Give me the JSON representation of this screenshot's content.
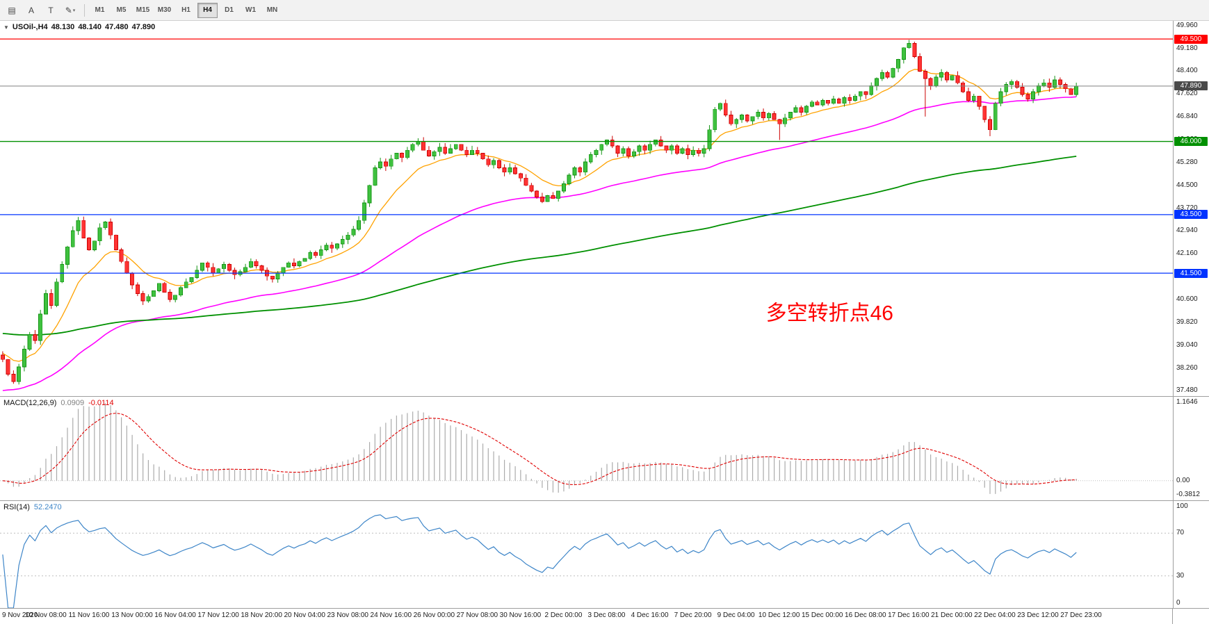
{
  "toolbar": {
    "tools": [
      {
        "name": "chart-grid",
        "glyph": "▤"
      },
      {
        "name": "text-label",
        "glyph": "A"
      },
      {
        "name": "text-box",
        "glyph": "T"
      },
      {
        "name": "draw-tools",
        "glyph": "✎",
        "dropdown": "▾"
      }
    ],
    "timeframes": [
      "M1",
      "M5",
      "M15",
      "M30",
      "H1",
      "H4",
      "D1",
      "W1",
      "MN"
    ],
    "active_timeframe": "H4"
  },
  "chart": {
    "collapse_glyph": "▼",
    "symbol_timeframe": "USOil-,H4",
    "open": "48.130",
    "high": "48.140",
    "low": "47.480",
    "close": "47.890"
  },
  "chart_data": {
    "type": "candlestick",
    "title": "USOil-,H4 48.130 48.140 47.480 47.890",
    "symbol": "USOil-",
    "timeframe": "H4",
    "current_bar": {
      "open": 48.13,
      "high": 48.14,
      "low": 47.48,
      "close": 47.89
    },
    "y_axis": {
      "min": 37.3,
      "max": 50.12,
      "ticks": [
        "49.960",
        "49.180",
        "48.400",
        "47.620",
        "46.840",
        "46.060",
        "45.280",
        "44.500",
        "43.720",
        "42.940",
        "42.160",
        "41.380",
        "40.600",
        "39.820",
        "39.040",
        "38.260",
        "37.480"
      ]
    },
    "x_labels": [
      "9 Nov 2020",
      "10 Nov 08:00",
      "11 Nov 16:00",
      "13 Nov 00:00",
      "16 Nov 04:00",
      "17 Nov 12:00",
      "18 Nov 20:00",
      "20 Nov 04:00",
      "23 Nov 08:00",
      "24 Nov 16:00",
      "26 Nov 00:00",
      "27 Nov 08:00",
      "30 Nov 16:00",
      "2 Dec 00:00",
      "3 Dec 08:00",
      "4 Dec 16:00",
      "7 Dec 20:00",
      "9 Dec 04:00",
      "10 Dec 12:00",
      "15 Dec 00:00",
      "16 Dec 08:00",
      "17 Dec 16:00",
      "21 Dec 00:00",
      "22 Dec 04:00",
      "23 Dec 12:00",
      "27 Dec 23:00"
    ],
    "first_open": 38.7,
    "closes": [
      38.55,
      38.05,
      37.8,
      38.3,
      38.9,
      39.4,
      39.2,
      40.1,
      40.8,
      40.4,
      41.2,
      41.8,
      42.4,
      42.95,
      43.3,
      42.7,
      42.3,
      42.6,
      43.05,
      43.25,
      42.8,
      42.3,
      41.9,
      41.5,
      41.1,
      40.8,
      40.55,
      40.7,
      40.9,
      41.15,
      40.85,
      40.6,
      40.75,
      41.0,
      41.2,
      41.35,
      41.6,
      41.85,
      41.7,
      41.5,
      41.65,
      41.8,
      41.6,
      41.45,
      41.55,
      41.7,
      41.9,
      41.75,
      41.6,
      41.4,
      41.3,
      41.5,
      41.7,
      41.85,
      41.75,
      41.9,
      42.0,
      42.2,
      42.1,
      42.3,
      42.45,
      42.35,
      42.5,
      42.65,
      42.8,
      43.0,
      43.3,
      43.9,
      44.5,
      45.1,
      45.3,
      45.15,
      45.4,
      45.6,
      45.45,
      45.7,
      45.9,
      46.0,
      45.7,
      45.5,
      45.65,
      45.8,
      45.6,
      45.75,
      45.9,
      45.7,
      45.55,
      45.7,
      45.6,
      45.4,
      45.2,
      45.35,
      45.1,
      44.95,
      45.1,
      44.9,
      44.75,
      44.5,
      44.3,
      44.1,
      43.95,
      44.15,
      44.05,
      44.3,
      44.55,
      44.85,
      45.1,
      44.95,
      45.3,
      45.55,
      45.7,
      45.9,
      46.05,
      45.85,
      45.6,
      45.75,
      45.5,
      45.65,
      45.85,
      45.7,
      45.9,
      46.05,
      45.85,
      45.7,
      45.85,
      45.6,
      45.75,
      45.55,
      45.7,
      45.6,
      45.75,
      46.4,
      47.1,
      47.3,
      46.9,
      46.6,
      46.75,
      46.9,
      46.7,
      46.85,
      47.0,
      46.8,
      46.95,
      46.75,
      46.6,
      46.8,
      47.0,
      47.15,
      47.0,
      47.2,
      47.35,
      47.25,
      47.4,
      47.3,
      47.45,
      47.3,
      47.5,
      47.4,
      47.55,
      47.7,
      47.6,
      47.9,
      48.15,
      48.35,
      48.2,
      48.5,
      48.8,
      49.2,
      49.35,
      48.9,
      48.4,
      48.15,
      47.9,
      48.2,
      48.35,
      48.1,
      48.25,
      48.0,
      47.7,
      47.4,
      47.55,
      47.2,
      46.75,
      46.4,
      47.3,
      47.7,
      47.95,
      48.05,
      47.85,
      47.6,
      47.45,
      47.7,
      47.9,
      48.0,
      47.85,
      48.1,
      47.95,
      47.8,
      47.6,
      47.89
    ],
    "wick_amplitude": 0.16,
    "wick_overrides": {
      "2": {
        "low": 37.72
      },
      "14": {
        "high": 43.42
      },
      "144": {
        "low": 46.05
      },
      "168": {
        "high": 49.47
      },
      "171": {
        "low": 46.85
      },
      "183": {
        "low": 46.18
      }
    },
    "right_margin_fraction": 0.08,
    "candle_colors": {
      "bull_fill": "#3fc13f",
      "bull_stroke": "#149414",
      "bear_fill": "#ff3333",
      "bear_stroke": "#cc0000"
    },
    "moving_averages": [
      {
        "name": "ma-fast",
        "type": "ema",
        "period": 12,
        "init": 38.8,
        "color": "#ffa200",
        "width": 1.3
      },
      {
        "name": "ma-medium",
        "type": "ema",
        "period": 55,
        "init": 37.45,
        "color": "#ff00ff",
        "width": 1.6
      },
      {
        "name": "ma-slow",
        "type": "ema",
        "period": 180,
        "init": 39.45,
        "color": "#009000",
        "width": 1.8
      }
    ],
    "horizontal_lines": [
      {
        "price": 49.5,
        "label": "49.500",
        "color": "#ff0000"
      },
      {
        "price": 46.0,
        "label": "46.000",
        "color": "#009000"
      },
      {
        "price": 43.5,
        "label": "43.500",
        "color": "#0033ff"
      },
      {
        "price": 41.5,
        "label": "41.500",
        "color": "#0033ff"
      }
    ],
    "current_price_line": {
      "price": 47.89,
      "label": "47.890",
      "line_color": "#808080",
      "badge_color": "#4a4a4a"
    },
    "annotation": {
      "text": "多空转折点46",
      "color": "#ff0000",
      "price": 39.9,
      "x_fraction": 0.653,
      "font_size": 30
    }
  },
  "macd": {
    "label": "MACD(12,26,9)",
    "value": "0.0909",
    "signal_value": "-0.0114",
    "fast": 12,
    "slow": 26,
    "signal": 9,
    "axis_labels": [
      "1.1646",
      "0.00",
      "-0.3812"
    ],
    "histogram_color": "#ababab",
    "signal_color": "#e00000",
    "zero_line_color": "#bdbdbd"
  },
  "rsi": {
    "label": "RSI(14)",
    "value": "52.2470",
    "period": 14,
    "levels": [
      70,
      30
    ],
    "axis_labels": [
      "100",
      "70",
      "30",
      "0"
    ],
    "line_color": "#3d85c8",
    "level_color": "#bdbdbd"
  }
}
